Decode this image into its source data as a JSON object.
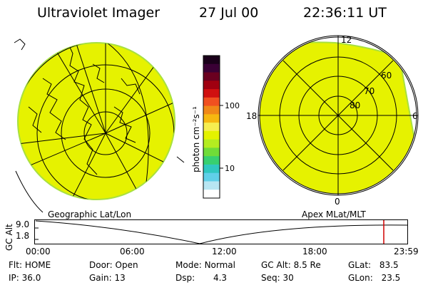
{
  "header": {
    "title": "Ultraviolet Imager",
    "date": "27 Jul 00",
    "time": "22:36:11 UT"
  },
  "colors": {
    "image_fill": "#e6f200",
    "image_edge": "#a8e040",
    "grid": "#000000",
    "time_marker": "#d00000"
  },
  "colorbar": {
    "unit_label": "photon cm⁻²s⁻¹",
    "tick_labels": [
      "100",
      "10"
    ],
    "stops": [
      "#1a001a",
      "#3a0035",
      "#6a0020",
      "#a00010",
      "#d01010",
      "#f05020",
      "#f08818",
      "#f6b810",
      "#f6ee50",
      "#e4f200",
      "#b4ec20",
      "#70dc38",
      "#38d070",
      "#30c8c0",
      "#60d0e8",
      "#b8e6f2",
      "#ffffff"
    ]
  },
  "left_map": {
    "caption": "Geographic Lat/Lon"
  },
  "right_map": {
    "caption": "Apex MLat/MLT",
    "mlt_labels": {
      "top": "12",
      "left": "18",
      "right": "6",
      "bottom": "0"
    },
    "lat_labels": [
      "60",
      "70",
      "80"
    ]
  },
  "altitude_plot": {
    "ylabel": "GC Alt",
    "y_ticks": [
      "9.0",
      "1.8"
    ],
    "x_ticks": [
      "00:00",
      "06:00",
      "12:00",
      "18:00",
      "23:59"
    ],
    "current_time_marker": "22:36"
  },
  "info": {
    "flt": {
      "label": "Flt:",
      "value": "HOME"
    },
    "ip": {
      "label": "IP:",
      "value": "36.0"
    },
    "door": {
      "label": "Door:",
      "value": "Open"
    },
    "gain": {
      "label": "Gain:",
      "value": "13"
    },
    "mode": {
      "label": "Mode:",
      "value": "Normal"
    },
    "dsp": {
      "label": "Dsp:",
      "value": "4.3"
    },
    "gcalt": {
      "label": "GC Alt:",
      "value": "8.5 Re"
    },
    "seq": {
      "label": "Seq:",
      "value": "30"
    },
    "glat": {
      "label": "GLat:",
      "value": "83.5"
    },
    "glon": {
      "label": "GLon:",
      "value": "23.5"
    }
  }
}
